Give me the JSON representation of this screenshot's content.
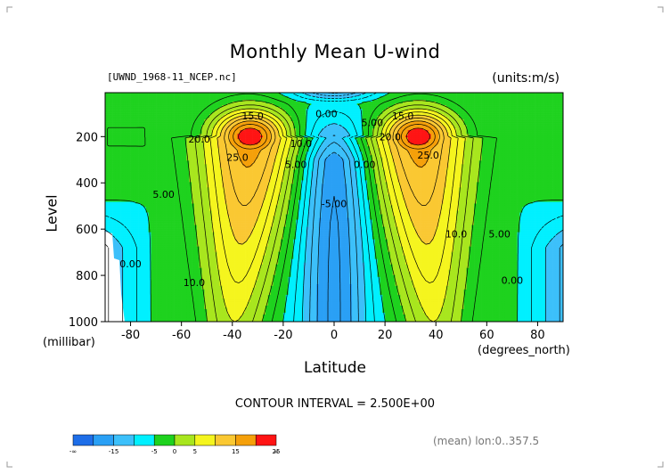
{
  "header": {
    "title": "Monthly Mean U-wind",
    "file_label": "[UWND_1968-11_NCEP.nc]",
    "units_label": "(units:m/s)"
  },
  "footer": {
    "contour_interval": "CONTOUR INTERVAL = 2.500E+00",
    "mean_label": "(mean) lon:0..357.5"
  },
  "chart_data": {
    "type": "heatmap",
    "title": "Monthly Mean U-wind",
    "xlabel": "Latitude",
    "xunit": "(degrees_north)",
    "ylabel": "Level",
    "yunit": "(millibar)",
    "xlim": [
      -90,
      90
    ],
    "ylim": [
      1000,
      10
    ],
    "x_ticks": [
      -80,
      -60,
      -40,
      -20,
      0,
      20,
      40,
      60,
      80
    ],
    "y_ticks": [
      200,
      400,
      600,
      800,
      1000
    ],
    "contour_interval": 2.5,
    "color_levels": [
      {
        "range": "-inf..-15",
        "color": "#1e6ee8"
      },
      {
        "range": "-15..-10",
        "color": "#2aa0f5"
      },
      {
        "range": "-10..-5",
        "color": "#3cc0fa"
      },
      {
        "range": "-5..0",
        "color": "#00f0ff"
      },
      {
        "range": "0..5",
        "color": "#1ed21e"
      },
      {
        "range": "5..10",
        "color": "#a8e61e"
      },
      {
        "range": "10..15",
        "color": "#f5f51e"
      },
      {
        "range": "15..20",
        "color": "#fac832"
      },
      {
        "range": "20..25",
        "color": "#f5a00a"
      },
      {
        "range": "25..inf",
        "color": "#ff1414"
      }
    ],
    "colorbar_labels": [
      "-∞",
      "-15",
      "-5",
      "0",
      "5",
      "15",
      "25",
      "∞"
    ],
    "jets": [
      {
        "lat": -33,
        "level": 200,
        "max": 27.5
      },
      {
        "lat": 33,
        "level": 200,
        "max": 27.5
      }
    ],
    "contour_labels": [
      {
        "text": "15.0",
        "lat": -32,
        "level": 110
      },
      {
        "text": "20.0",
        "lat": -53,
        "level": 210
      },
      {
        "text": "25.0",
        "lat": -38,
        "level": 290
      },
      {
        "text": "10.0",
        "lat": -13,
        "level": 230
      },
      {
        "text": "5.00",
        "lat": -15,
        "level": 320
      },
      {
        "text": "5.00",
        "lat": -67,
        "level": 450
      },
      {
        "text": "10.0",
        "lat": -55,
        "level": 830
      },
      {
        "text": "0.00",
        "lat": -80,
        "level": 750
      },
      {
        "text": "0.00",
        "lat": -3,
        "level": 100
      },
      {
        "text": "5.00",
        "lat": 15,
        "level": 140
      },
      {
        "text": "15.0",
        "lat": 27,
        "level": 110
      },
      {
        "text": "20.0",
        "lat": 22,
        "level": 200
      },
      {
        "text": "25.0",
        "lat": 37,
        "level": 280
      },
      {
        "text": "0.00",
        "lat": 12,
        "level": 320
      },
      {
        "text": "-5.00",
        "lat": 0,
        "level": 490
      },
      {
        "text": "10.0",
        "lat": 48,
        "level": 620
      },
      {
        "text": "5.00",
        "lat": 65,
        "level": 620
      },
      {
        "text": "0.00",
        "lat": 70,
        "level": 820
      }
    ]
  }
}
